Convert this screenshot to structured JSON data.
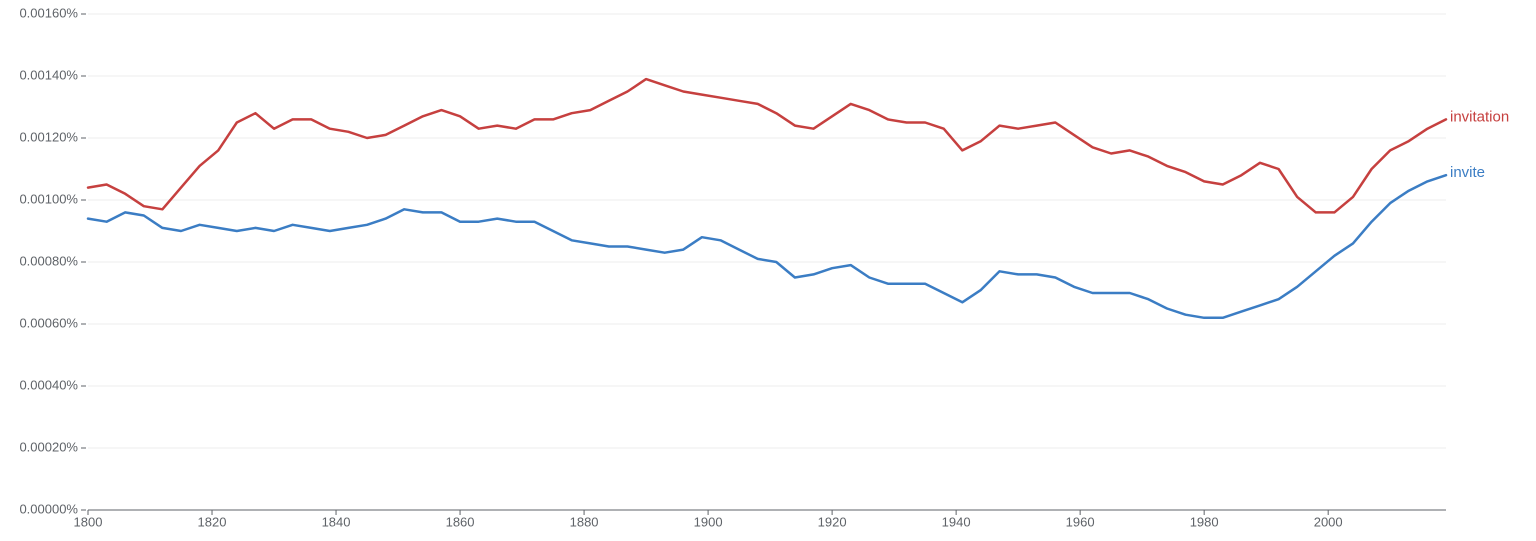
{
  "chart_data": {
    "type": "line",
    "x": [
      1800,
      1803,
      1806,
      1809,
      1812,
      1815,
      1818,
      1821,
      1824,
      1827,
      1830,
      1833,
      1836,
      1839,
      1842,
      1845,
      1848,
      1851,
      1854,
      1857,
      1860,
      1863,
      1866,
      1869,
      1872,
      1875,
      1878,
      1881,
      1884,
      1887,
      1890,
      1893,
      1896,
      1899,
      1902,
      1905,
      1908,
      1911,
      1914,
      1917,
      1920,
      1923,
      1926,
      1929,
      1932,
      1935,
      1938,
      1941,
      1944,
      1947,
      1950,
      1953,
      1956,
      1959,
      1962,
      1965,
      1968,
      1971,
      1974,
      1977,
      1980,
      1983,
      1986,
      1989,
      1992,
      1995,
      1998,
      2001,
      2004,
      2007,
      2010,
      2013,
      2016,
      2019
    ],
    "series": [
      {
        "name": "invitation",
        "color": "#c6403f",
        "values": [
          0.00104,
          0.00105,
          0.00102,
          0.00098,
          0.00097,
          0.00104,
          0.00111,
          0.00116,
          0.00125,
          0.00128,
          0.00123,
          0.00126,
          0.00126,
          0.00123,
          0.00122,
          0.0012,
          0.00121,
          0.00124,
          0.00127,
          0.00129,
          0.00127,
          0.00123,
          0.00124,
          0.00123,
          0.00126,
          0.00126,
          0.00128,
          0.00129,
          0.00132,
          0.00135,
          0.00139,
          0.00137,
          0.00135,
          0.00134,
          0.00133,
          0.00132,
          0.00131,
          0.00128,
          0.00124,
          0.00123,
          0.00127,
          0.00131,
          0.00129,
          0.00126,
          0.00125,
          0.00125,
          0.00123,
          0.00116,
          0.00119,
          0.00124,
          0.00123,
          0.00124,
          0.00125,
          0.00121,
          0.00117,
          0.00115,
          0.00116,
          0.00114,
          0.00111,
          0.00109,
          0.00106,
          0.00105,
          0.00108,
          0.00112,
          0.0011,
          0.00101,
          0.00096,
          0.00096,
          0.00101,
          0.0011,
          0.00116,
          0.00119,
          0.00123,
          0.00126
        ]
      },
      {
        "name": "invite",
        "color": "#3b7dc4",
        "values": [
          0.00094,
          0.00093,
          0.00096,
          0.00095,
          0.00091,
          0.0009,
          0.00092,
          0.00091,
          0.0009,
          0.00091,
          0.0009,
          0.00092,
          0.00091,
          0.0009,
          0.00091,
          0.00092,
          0.00094,
          0.00097,
          0.00096,
          0.00096,
          0.00093,
          0.00093,
          0.00094,
          0.00093,
          0.00093,
          0.0009,
          0.00087,
          0.00086,
          0.00085,
          0.00085,
          0.00084,
          0.00083,
          0.00084,
          0.00088,
          0.00087,
          0.00084,
          0.00081,
          0.0008,
          0.00075,
          0.00076,
          0.00078,
          0.00079,
          0.00075,
          0.00073,
          0.00073,
          0.00073,
          0.0007,
          0.00067,
          0.00071,
          0.00077,
          0.00076,
          0.00076,
          0.00075,
          0.00072,
          0.0007,
          0.0007,
          0.0007,
          0.00068,
          0.00065,
          0.00063,
          0.00062,
          0.00062,
          0.00064,
          0.00066,
          0.00068,
          0.00072,
          0.00077,
          0.00082,
          0.00086,
          0.00093,
          0.00099,
          0.00103,
          0.00106,
          0.00108
        ]
      }
    ],
    "xlim": [
      1800,
      2019
    ],
    "xticks": [
      1800,
      1820,
      1840,
      1860,
      1880,
      1900,
      1920,
      1940,
      1960,
      1980,
      2000
    ],
    "ylim": [
      0,
      0.0016
    ],
    "yticks": [
      {
        "value": 0,
        "label": "0.00000%"
      },
      {
        "value": 0.0002,
        "label": "0.00020%"
      },
      {
        "value": 0.0004,
        "label": "0.00040%"
      },
      {
        "value": 0.0006,
        "label": "0.00060%"
      },
      {
        "value": 0.0008,
        "label": "0.00080%"
      },
      {
        "value": 0.001,
        "label": "0.00100%"
      },
      {
        "value": 0.0012,
        "label": "0.00120%"
      },
      {
        "value": 0.0014,
        "label": "0.00140%"
      },
      {
        "value": 0.0016,
        "label": "0.00160%"
      }
    ],
    "grid": true
  }
}
